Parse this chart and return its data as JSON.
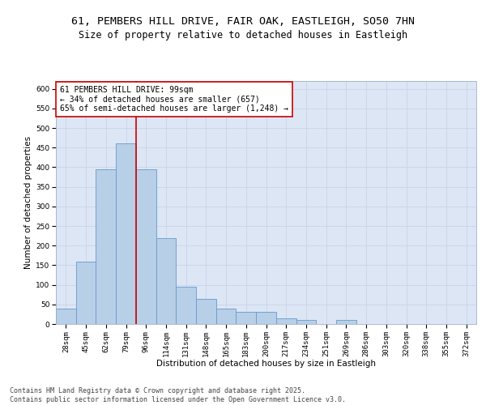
{
  "title1": "61, PEMBERS HILL DRIVE, FAIR OAK, EASTLEIGH, SO50 7HN",
  "title2": "Size of property relative to detached houses in Eastleigh",
  "xlabel": "Distribution of detached houses by size in Eastleigh",
  "ylabel": "Number of detached properties",
  "bin_labels": [
    "28sqm",
    "45sqm",
    "62sqm",
    "79sqm",
    "96sqm",
    "114sqm",
    "131sqm",
    "148sqm",
    "165sqm",
    "183sqm",
    "200sqm",
    "217sqm",
    "234sqm",
    "251sqm",
    "269sqm",
    "286sqm",
    "303sqm",
    "320sqm",
    "338sqm",
    "355sqm",
    "372sqm"
  ],
  "bar_heights": [
    40,
    160,
    395,
    460,
    395,
    220,
    95,
    65,
    40,
    30,
    30,
    15,
    10,
    0,
    10,
    0,
    0,
    0,
    0,
    0,
    0
  ],
  "bar_color": "#b8cfe8",
  "bar_edge_color": "#6699cc",
  "vline_color": "#cc0000",
  "annotation_text": "61 PEMBERS HILL DRIVE: 99sqm\n← 34% of detached houses are smaller (657)\n65% of semi-detached houses are larger (1,248) →",
  "annotation_box_color": "#ffffff",
  "annotation_box_edge": "#cc0000",
  "ylim": [
    0,
    620
  ],
  "yticks": [
    0,
    50,
    100,
    150,
    200,
    250,
    300,
    350,
    400,
    450,
    500,
    550,
    600
  ],
  "grid_color": "#c8d4e8",
  "background_color": "#dce6f5",
  "footer_text": "Contains HM Land Registry data © Crown copyright and database right 2025.\nContains public sector information licensed under the Open Government Licence v3.0.",
  "title_fontsize": 9.5,
  "subtitle_fontsize": 8.5,
  "axis_label_fontsize": 7.5,
  "tick_fontsize": 6.5,
  "annotation_fontsize": 7,
  "footer_fontsize": 6
}
